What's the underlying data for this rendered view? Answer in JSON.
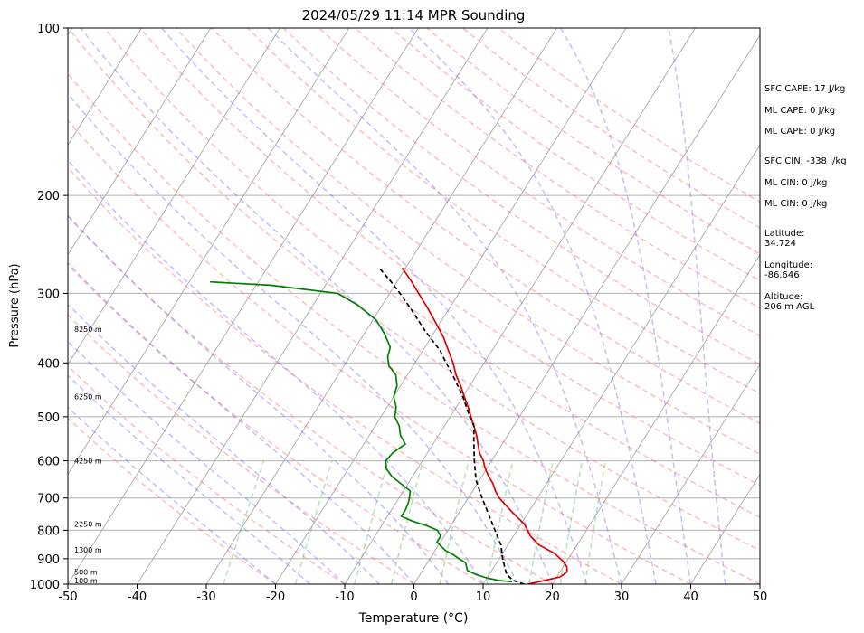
{
  "chart_data": {
    "type": "line",
    "title": "2024/05/29 11:14 MPR Sounding",
    "xlabel": "Temperature (°C)",
    "ylabel": "Pressure (hPa)",
    "xlim": [
      -50,
      50
    ],
    "ylim": [
      1000,
      100
    ],
    "yscale": "log",
    "x_ticks": [
      -50,
      -40,
      -30,
      -20,
      -10,
      0,
      10,
      20,
      30,
      40,
      50
    ],
    "y_ticks": [
      100,
      200,
      300,
      400,
      500,
      600,
      700,
      800,
      900,
      1000
    ],
    "grid": "horizontal at pressure ticks",
    "height_labels": [
      {
        "label": "100 m",
        "p": 985
      },
      {
        "label": "500 m",
        "p": 950
      },
      {
        "label": "1300 m",
        "p": 868
      },
      {
        "label": "2250 m",
        "p": 780
      },
      {
        "label": "4250 m",
        "p": 600
      },
      {
        "label": "6250 m",
        "p": 460
      },
      {
        "label": "8250 m",
        "p": 348
      }
    ],
    "series": [
      {
        "color": "#e00000",
        "style": "solid",
        "points": [
          [
            1000,
            16.5
          ],
          [
            985,
            18.5
          ],
          [
            970,
            20.5
          ],
          [
            950,
            21.0
          ],
          [
            930,
            20.5
          ],
          [
            910,
            19.5
          ],
          [
            880,
            17.5
          ],
          [
            850,
            14.5
          ],
          [
            820,
            12.5
          ],
          [
            800,
            11.5
          ],
          [
            780,
            10.5
          ],
          [
            760,
            9.0
          ],
          [
            740,
            7.5
          ],
          [
            720,
            6.0
          ],
          [
            700,
            4.5
          ],
          [
            680,
            3.3
          ],
          [
            660,
            2.3
          ],
          [
            640,
            1.0
          ],
          [
            620,
            -0.2
          ],
          [
            600,
            -1.2
          ],
          [
            580,
            -2.5
          ],
          [
            560,
            -3.5
          ],
          [
            540,
            -4.5
          ],
          [
            520,
            -5.7
          ],
          [
            500,
            -7.0
          ],
          [
            480,
            -8.3
          ],
          [
            460,
            -9.8
          ],
          [
            440,
            -11.3
          ],
          [
            420,
            -13.0
          ],
          [
            400,
            -14.5
          ],
          [
            380,
            -16.3
          ],
          [
            360,
            -18.2
          ],
          [
            340,
            -20.5
          ],
          [
            320,
            -23.0
          ],
          [
            300,
            -25.8
          ],
          [
            285,
            -28.0
          ],
          [
            270,
            -30.5
          ]
        ]
      },
      {
        "color": "#008000",
        "style": "solid",
        "points": [
          [
            990,
            14.0
          ],
          [
            985,
            12.0
          ],
          [
            975,
            10.0
          ],
          [
            960,
            8.0
          ],
          [
            945,
            6.5
          ],
          [
            930,
            6.0
          ],
          [
            915,
            5.5
          ],
          [
            900,
            4.2
          ],
          [
            885,
            3.0
          ],
          [
            870,
            1.5
          ],
          [
            855,
            0.5
          ],
          [
            840,
            -0.5
          ],
          [
            820,
            -0.5
          ],
          [
            800,
            -1.5
          ],
          [
            785,
            -3.5
          ],
          [
            770,
            -6.0
          ],
          [
            755,
            -8.0
          ],
          [
            735,
            -8.0
          ],
          [
            715,
            -8.2
          ],
          [
            700,
            -8.5
          ],
          [
            680,
            -9.0
          ],
          [
            660,
            -11.0
          ],
          [
            640,
            -13.0
          ],
          [
            620,
            -14.5
          ],
          [
            600,
            -15.3
          ],
          [
            580,
            -15.0
          ],
          [
            560,
            -14.0
          ],
          [
            540,
            -15.5
          ],
          [
            520,
            -16.5
          ],
          [
            500,
            -18.0
          ],
          [
            480,
            -18.7
          ],
          [
            460,
            -20.0
          ],
          [
            440,
            -20.5
          ],
          [
            420,
            -21.7
          ],
          [
            405,
            -23.5
          ],
          [
            390,
            -24.5
          ],
          [
            375,
            -25.0
          ],
          [
            355,
            -27.0
          ],
          [
            335,
            -29.5
          ],
          [
            315,
            -33.5
          ],
          [
            300,
            -37.5
          ],
          [
            290,
            -48.0
          ],
          [
            286,
            -57.0
          ]
        ]
      },
      {
        "color": "#000000",
        "style": "dashed",
        "points": [
          [
            1000,
            16.0
          ],
          [
            985,
            14.0
          ],
          [
            960,
            12.5
          ],
          [
            930,
            11.5
          ],
          [
            900,
            10.5
          ],
          [
            850,
            9.0
          ],
          [
            800,
            6.8
          ],
          [
            750,
            4.5
          ],
          [
            700,
            2.0
          ],
          [
            650,
            -0.5
          ],
          [
            600,
            -2.5
          ],
          [
            550,
            -4.5
          ],
          [
            520,
            -5.7
          ],
          [
            500,
            -7.2
          ],
          [
            460,
            -10.0
          ],
          [
            420,
            -13.5
          ],
          [
            400,
            -15.5
          ],
          [
            380,
            -17.5
          ],
          [
            350,
            -21.5
          ],
          [
            320,
            -25.5
          ],
          [
            300,
            -28.5
          ],
          [
            285,
            -31.0
          ],
          [
            270,
            -33.8
          ]
        ]
      }
    ]
  },
  "stats": {
    "sfc_cape": "SFC CAPE: 17 J/kg",
    "ml_cape_1": "ML CAPE: 0 J/kg",
    "ml_cape_2": "ML CAPE: 0 J/kg",
    "sfc_cin": "SFC CIN: -338 J/kg",
    "ml_cin_1": "ML CIN: 0 J/kg",
    "ml_cin_2": "ML CIN: 0 J/kg",
    "lat_label": "Latitude:",
    "lat_value": "34.724",
    "lon_label": "Longitude:",
    "lon_value": "-86.646",
    "alt_label": "Altitude:",
    "alt_value": "206 m AGL"
  }
}
